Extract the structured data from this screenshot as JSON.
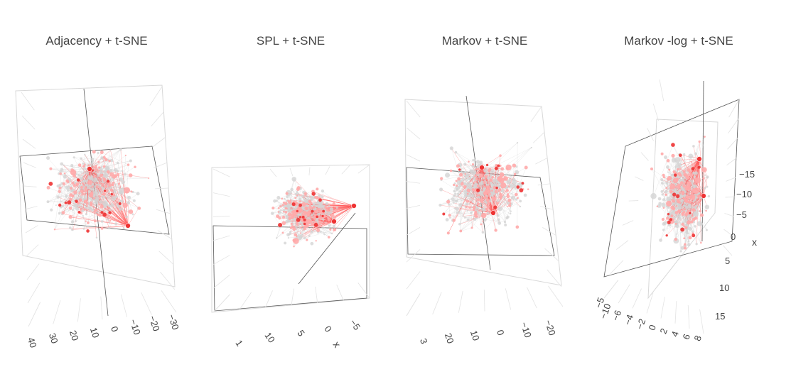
{
  "chart_data": [
    {
      "type": "scatter",
      "title": "Adjacency + t-SNE",
      "axes_visible": [
        {
          "name": "x",
          "title": "",
          "ticks": [
            "40",
            "30",
            "20",
            "10",
            "0",
            "−10",
            "−20",
            "−30"
          ]
        }
      ],
      "node_colors": {
        "central": "#ee3333",
        "connected": "#ffaaaa",
        "other": "#d4d4d4"
      },
      "edge_colors": {
        "highlighted": "#ff5a5a",
        "other": "#c8c8c8"
      },
      "grid": true
    },
    {
      "type": "scatter",
      "title": "SPL + t-SNE",
      "axes_visible": [
        {
          "name": "x",
          "title": "x",
          "ticks": [
            "1",
            "10",
            "5",
            "0",
            "−5"
          ]
        }
      ],
      "node_colors": {
        "central": "#ee3333",
        "connected": "#ffaaaa",
        "other": "#d4d4d4"
      },
      "edge_colors": {
        "highlighted": "#ff5a5a",
        "other": "#c8c8c8"
      },
      "grid": true
    },
    {
      "type": "scatter",
      "title": "Markov + t-SNE",
      "axes_visible": [
        {
          "name": "x",
          "title": "",
          "ticks": [
            "3",
            "20",
            "10",
            "0",
            "−10",
            "−20"
          ]
        }
      ],
      "node_colors": {
        "central": "#ee3333",
        "connected": "#ffaaaa",
        "other": "#d4d4d4"
      },
      "edge_colors": {
        "highlighted": "#ff5a5a",
        "other": "#c8c8c8"
      },
      "grid": true
    },
    {
      "type": "scatter",
      "title": "Markov -log + t-SNE",
      "axes_visible": [
        {
          "name": "x",
          "title": "x",
          "ticks": [
            "−15",
            "−10",
            "−5",
            "0",
            "5",
            "10",
            "15"
          ]
        },
        {
          "name": "y",
          "title": "",
          "ticks": [
            "−5",
            "−10",
            "−6",
            "−4",
            "−2",
            "0",
            "2",
            "4",
            "6",
            "8"
          ]
        }
      ],
      "node_colors": {
        "central": "#ee3333",
        "connected": "#ffaaaa",
        "other": "#d4d4d4"
      },
      "edge_colors": {
        "highlighted": "#ff5a5a",
        "other": "#c8c8c8"
      },
      "grid": true
    }
  ]
}
